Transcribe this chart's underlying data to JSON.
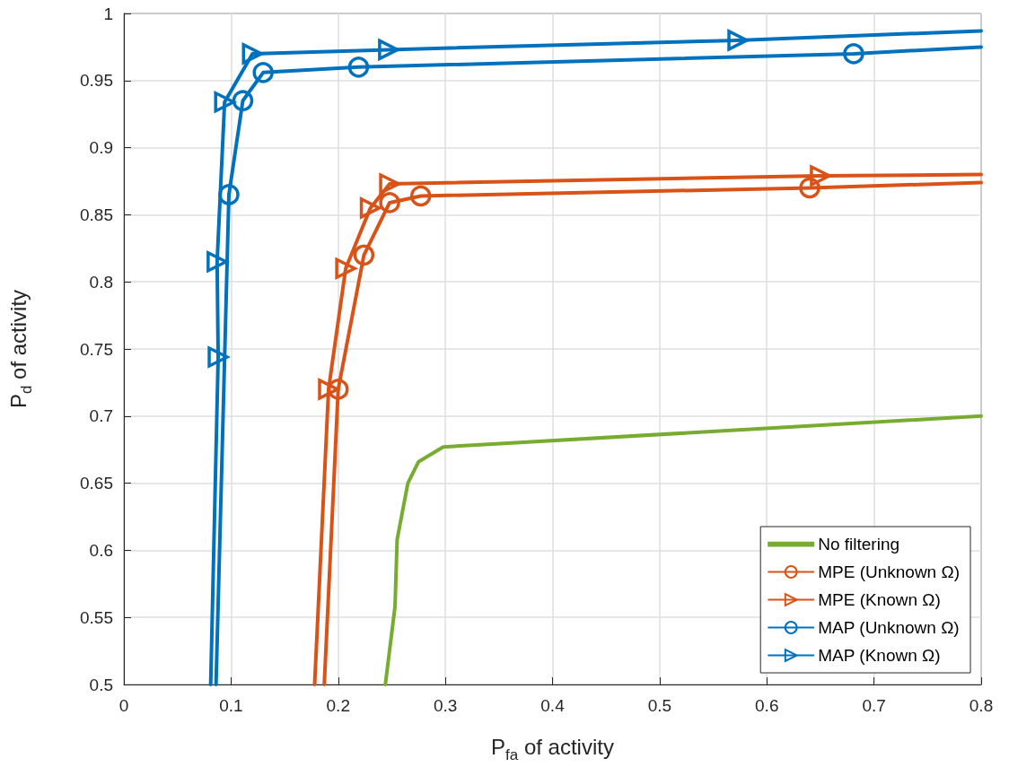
{
  "chart_data": {
    "type": "line",
    "xlabel": "P$_{fa}$ of activity",
    "ylabel": "P$_{d}$ of activity",
    "xlim": [
      0,
      0.8
    ],
    "xticks": [
      0,
      0.1,
      0.2,
      0.3,
      0.4,
      0.5,
      0.6,
      0.7,
      0.8
    ],
    "ylim": [
      0.5,
      1
    ],
    "yticks": [
      0.5,
      0.55,
      0.6,
      0.65,
      0.7,
      0.75,
      0.8,
      0.85,
      0.9,
      0.95,
      1
    ],
    "grid": true,
    "legend": "bottom right",
    "series": [
      {
        "name": "No filtering",
        "color": "#77ac30",
        "marker": "none",
        "x": [
          0.244,
          0.253,
          0.255,
          0.265,
          0.275,
          0.298,
          0.34,
          0.8
        ],
        "values": [
          0.5,
          0.558,
          0.608,
          0.65,
          0.666,
          0.677,
          0.679,
          0.7
        ]
      },
      {
        "name": "MPE (Unknown Ω)",
        "color": "#d95319",
        "marker": "circle",
        "x": [
          0.187,
          0.2,
          0.224,
          0.248,
          0.277,
          0.64,
          0.8
        ],
        "values": [
          0.5,
          0.72,
          0.82,
          0.859,
          0.864,
          0.87,
          0.874
        ]
      },
      {
        "name": "MPE (Known Ω)",
        "color": "#d95319",
        "marker": "triangle",
        "x": [
          0.178,
          0.191,
          0.207,
          0.23,
          0.248,
          0.65,
          0.8
        ],
        "values": [
          0.5,
          0.72,
          0.81,
          0.855,
          0.873,
          0.879,
          0.88
        ]
      },
      {
        "name": "MAP (Unknown Ω)",
        "color": "#0072bd",
        "marker": "circle",
        "x": [
          0.086,
          0.098,
          0.111,
          0.13,
          0.219,
          0.681,
          0.8
        ],
        "values": [
          0.5,
          0.865,
          0.935,
          0.956,
          0.96,
          0.97,
          0.975
        ]
      },
      {
        "name": "MAP (Known Ω)",
        "color": "#0072bd",
        "marker": "triangle",
        "x": [
          0.081,
          0.088,
          0.087,
          0.094,
          0.12,
          0.247,
          0.573,
          0.8
        ],
        "values": [
          0.5,
          0.744,
          0.815,
          0.934,
          0.97,
          0.973,
          0.98,
          0.987
        ]
      }
    ]
  }
}
